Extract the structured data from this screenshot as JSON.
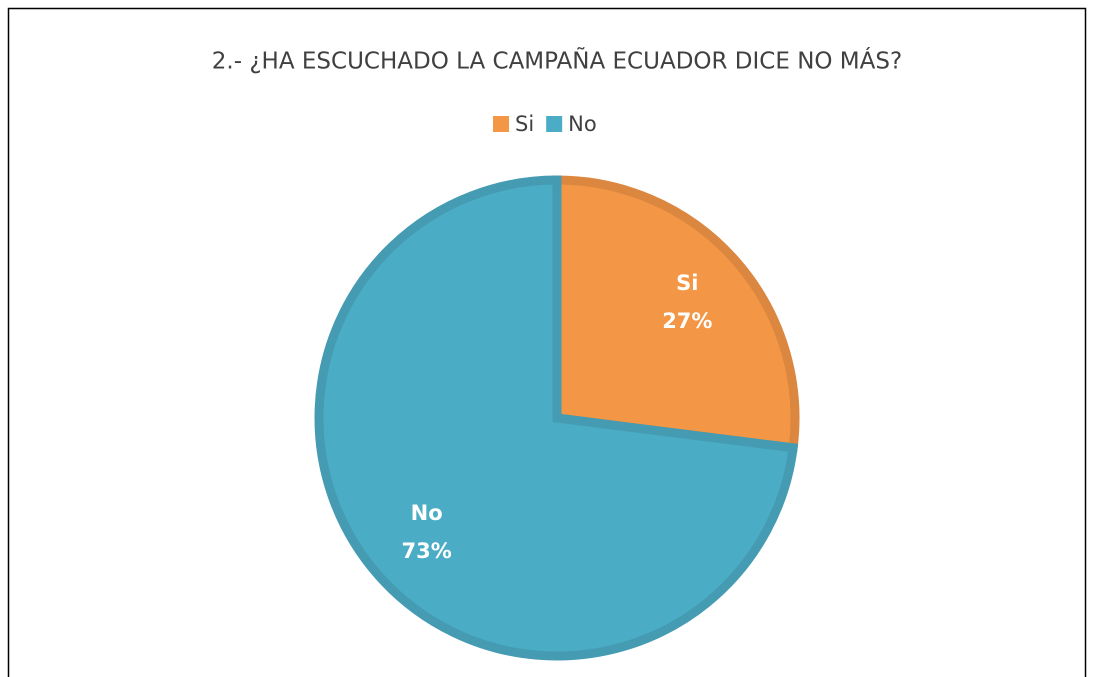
{
  "chart_data": {
    "type": "pie",
    "title": "2.- ¿HA ESCUCHADO LA CAMPAÑA ECUADOR DICE NO MÁS?",
    "categories": [
      "Si",
      "No"
    ],
    "values": [
      27,
      73
    ],
    "value_labels": [
      "27%",
      "73%"
    ],
    "colors": [
      "#f39646",
      "#4bacc6"
    ],
    "legend": "top"
  }
}
